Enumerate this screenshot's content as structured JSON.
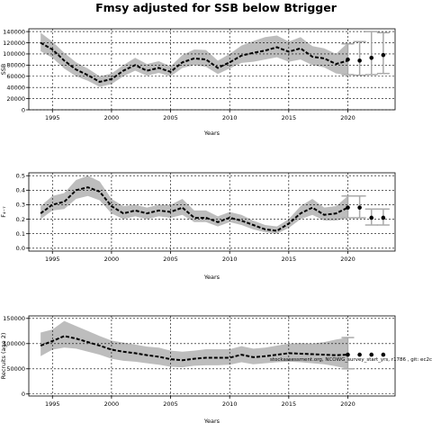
{
  "title": "Fmsy adjusted for SSB below Btrigger",
  "watermark": "stockassessment.org, NCOWG_survey_start_yrs, r1786 , git: ec2c",
  "colors": {
    "band": "#bdbdbd",
    "line": "#000000",
    "grid": "#000000",
    "forecast": "#aaaaaa"
  },
  "chart_data": [
    {
      "type": "line",
      "name": "ssb",
      "xlabel": "Years",
      "ylabel": "SSB",
      "xlim": [
        1993,
        2024
      ],
      "ylim": [
        0,
        145000
      ],
      "xticks": [
        1995,
        2000,
        2005,
        2010,
        2015,
        2020
      ],
      "yticks": [
        0,
        20000,
        40000,
        60000,
        80000,
        100000,
        120000,
        140000
      ],
      "ytick_labels": [
        "0",
        "20000",
        "40000",
        "60000",
        "80000",
        "100000",
        "120000",
        "140000"
      ],
      "grid": true,
      "x": [
        1994,
        1995,
        1996,
        1997,
        1998,
        1999,
        2000,
        2001,
        2002,
        2003,
        2004,
        2005,
        2006,
        2007,
        2008,
        2009,
        2010,
        2011,
        2012,
        2013,
        2014,
        2015,
        2016,
        2017,
        2018,
        2019,
        2020
      ],
      "values": [
        120000,
        108000,
        88000,
        72000,
        62000,
        50000,
        55000,
        70000,
        80000,
        70000,
        75000,
        68000,
        85000,
        92000,
        90000,
        75000,
        85000,
        97000,
        102000,
        106000,
        112000,
        104000,
        110000,
        95000,
        92000,
        82000,
        88000
      ],
      "lower": [
        105000,
        93000,
        74000,
        60000,
        52000,
        41000,
        46000,
        60000,
        70000,
        61000,
        66000,
        60000,
        75000,
        80000,
        77000,
        64000,
        74000,
        84000,
        86000,
        90000,
        94000,
        86000,
        90000,
        80000,
        76000,
        65000,
        62000
      ],
      "upper": [
        138000,
        122000,
        102000,
        85000,
        74000,
        60000,
        65000,
        80000,
        93000,
        82000,
        87000,
        78000,
        98000,
        108000,
        107000,
        88000,
        100000,
        115000,
        123000,
        130000,
        133000,
        122000,
        130000,
        114000,
        110000,
        100000,
        120000
      ],
      "forecast": {
        "x": [
          2020,
          2021,
          2022,
          2023
        ],
        "values": [
          90000,
          88000,
          93000,
          98000
        ],
        "lower": [
          63000,
          62000,
          63000,
          65000
        ],
        "upper": [
          118000,
          122000,
          140000,
          138000
        ]
      }
    },
    {
      "type": "line",
      "name": "fbar",
      "xlabel": "Years",
      "ylabel": "F₄₋₇",
      "xlim": [
        1993,
        2024
      ],
      "ylim": [
        -0.02,
        0.52
      ],
      "xticks": [
        1995,
        2000,
        2005,
        2010,
        2015,
        2020
      ],
      "yticks": [
        0.0,
        0.1,
        0.2,
        0.3,
        0.4,
        0.5
      ],
      "ytick_labels": [
        "0.0",
        "0.1",
        "0.2",
        "0.3",
        "0.4",
        "0.5"
      ],
      "grid": true,
      "x": [
        1994,
        1995,
        1996,
        1997,
        1998,
        1999,
        2000,
        2001,
        2002,
        2003,
        2004,
        2005,
        2006,
        2007,
        2008,
        2009,
        2010,
        2011,
        2012,
        2013,
        2014,
        2015,
        2016,
        2017,
        2018,
        2019,
        2020
      ],
      "values": [
        0.24,
        0.3,
        0.32,
        0.4,
        0.42,
        0.39,
        0.29,
        0.24,
        0.26,
        0.24,
        0.26,
        0.25,
        0.28,
        0.21,
        0.21,
        0.18,
        0.21,
        0.19,
        0.16,
        0.13,
        0.12,
        0.17,
        0.24,
        0.28,
        0.23,
        0.24,
        0.28
      ],
      "lower": [
        0.2,
        0.26,
        0.27,
        0.34,
        0.36,
        0.33,
        0.24,
        0.2,
        0.22,
        0.2,
        0.22,
        0.21,
        0.23,
        0.18,
        0.18,
        0.15,
        0.18,
        0.16,
        0.13,
        0.11,
        0.1,
        0.14,
        0.2,
        0.23,
        0.19,
        0.19,
        0.21
      ],
      "upper": [
        0.29,
        0.36,
        0.38,
        0.47,
        0.5,
        0.46,
        0.34,
        0.29,
        0.3,
        0.28,
        0.3,
        0.3,
        0.34,
        0.26,
        0.26,
        0.22,
        0.25,
        0.23,
        0.19,
        0.16,
        0.15,
        0.2,
        0.29,
        0.34,
        0.28,
        0.29,
        0.36
      ],
      "forecast": {
        "x": [
          2020,
          2021,
          2022,
          2023
        ],
        "values": [
          0.28,
          0.28,
          0.21,
          0.21
        ],
        "lower": [
          0.21,
          0.21,
          0.16,
          0.16
        ],
        "upper": [
          0.36,
          0.36,
          0.27,
          0.27
        ]
      }
    },
    {
      "type": "line",
      "name": "recruits",
      "xlabel": "Years",
      "ylabel": "Recruits (age 2)",
      "xlim": [
        1993,
        2024
      ],
      "ylim": [
        -4000,
        155000
      ],
      "xticks": [
        1995,
        2000,
        2005,
        2010,
        2015,
        2020
      ],
      "yticks": [
        0,
        50000,
        100000,
        150000
      ],
      "ytick_labels": [
        "0",
        "50000",
        "100000",
        "150000"
      ],
      "grid": true,
      "x": [
        1994,
        1995,
        1996,
        1997,
        1998,
        1999,
        2000,
        2001,
        2002,
        2003,
        2004,
        2005,
        2006,
        2007,
        2008,
        2009,
        2010,
        2011,
        2012,
        2013,
        2014,
        2015,
        2016,
        2017,
        2018,
        2019,
        2020
      ],
      "values": [
        96000,
        105000,
        115000,
        110000,
        103000,
        96000,
        88000,
        84000,
        81000,
        77000,
        74000,
        69000,
        67000,
        70000,
        72000,
        72000,
        72000,
        78000,
        73000,
        75000,
        78000,
        81000,
        80000,
        79000,
        78000,
        77000,
        78000
      ],
      "lower": [
        75000,
        88000,
        92000,
        90000,
        84000,
        78000,
        70000,
        66000,
        64000,
        61000,
        58000,
        54000,
        53000,
        56000,
        57000,
        57000,
        58000,
        63000,
        59000,
        61000,
        63000,
        64000,
        63000,
        61000,
        59000,
        55000,
        50000
      ],
      "upper": [
        122000,
        128000,
        145000,
        135000,
        125000,
        115000,
        106000,
        102000,
        98000,
        94000,
        92000,
        86000,
        84000,
        86000,
        89000,
        89000,
        89000,
        95000,
        90000,
        92000,
        96000,
        100000,
        101000,
        100000,
        103000,
        108000,
        112000
      ],
      "forecast": {
        "x": [
          2020,
          2021,
          2022,
          2023
        ],
        "values": [
          78000,
          78000,
          78000,
          78000
        ],
        "lower": [
          50000,
          78000,
          78000,
          78000
        ],
        "upper": [
          112000,
          78000,
          78000,
          78000
        ]
      }
    }
  ]
}
